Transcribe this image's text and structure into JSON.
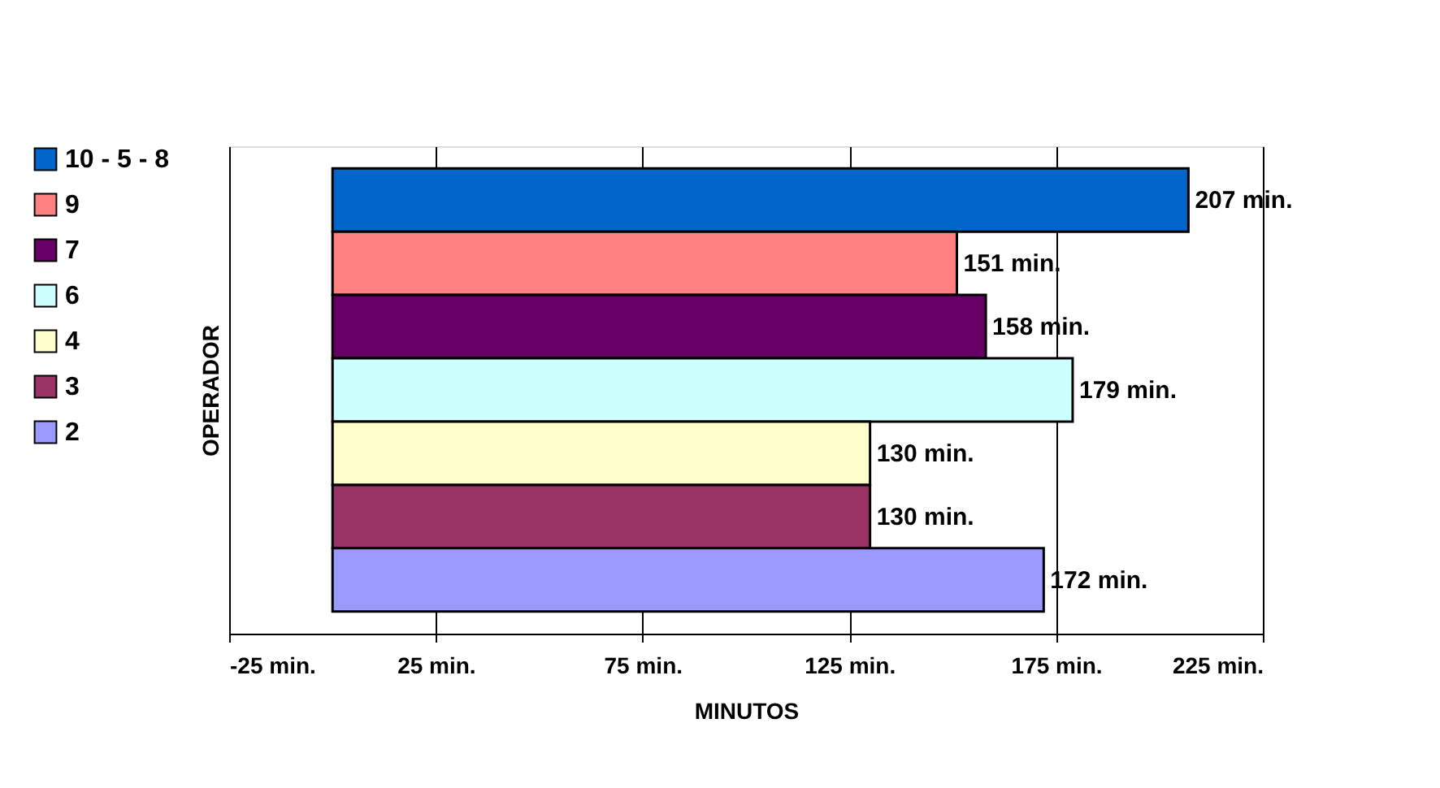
{
  "chart_data": {
    "type": "bar",
    "orientation": "horizontal",
    "xlabel": "MINUTOS",
    "ylabel": "OPERADOR",
    "categories": [
      null
    ],
    "series": [
      {
        "name": "10 - 5 - 8",
        "color": "#0066cc",
        "values": [
          207
        ],
        "value_labels": [
          "207 min."
        ]
      },
      {
        "name": "9",
        "color": "#ff8080",
        "values": [
          151
        ],
        "value_labels": [
          "151 min."
        ]
      },
      {
        "name": "7",
        "color": "#660066",
        "values": [
          158
        ],
        "value_labels": [
          "158 min."
        ]
      },
      {
        "name": "6",
        "color": "#ccffff",
        "values": [
          179
        ],
        "value_labels": [
          "179 min."
        ]
      },
      {
        "name": "4",
        "color": "#ffffcc",
        "values": [
          130
        ],
        "value_labels": [
          "130 min."
        ]
      },
      {
        "name": "3",
        "color": "#993366",
        "values": [
          130
        ],
        "value_labels": [
          "130 min."
        ]
      },
      {
        "name": "2",
        "color": "#9999ff",
        "values": [
          172
        ],
        "value_labels": [
          "172 min."
        ]
      }
    ],
    "xlim": [
      -25,
      225
    ],
    "xticks": [
      {
        "value": -25,
        "label": "-25 min."
      },
      {
        "value": 25,
        "label": "25 min."
      },
      {
        "value": 75,
        "label": "75 min."
      },
      {
        "value": 125,
        "label": "125 min."
      },
      {
        "value": 175,
        "label": "175 min."
      },
      {
        "value": 225,
        "label": "225 min."
      }
    ],
    "grid": "x",
    "legend": "left",
    "tick_labels": "x"
  }
}
